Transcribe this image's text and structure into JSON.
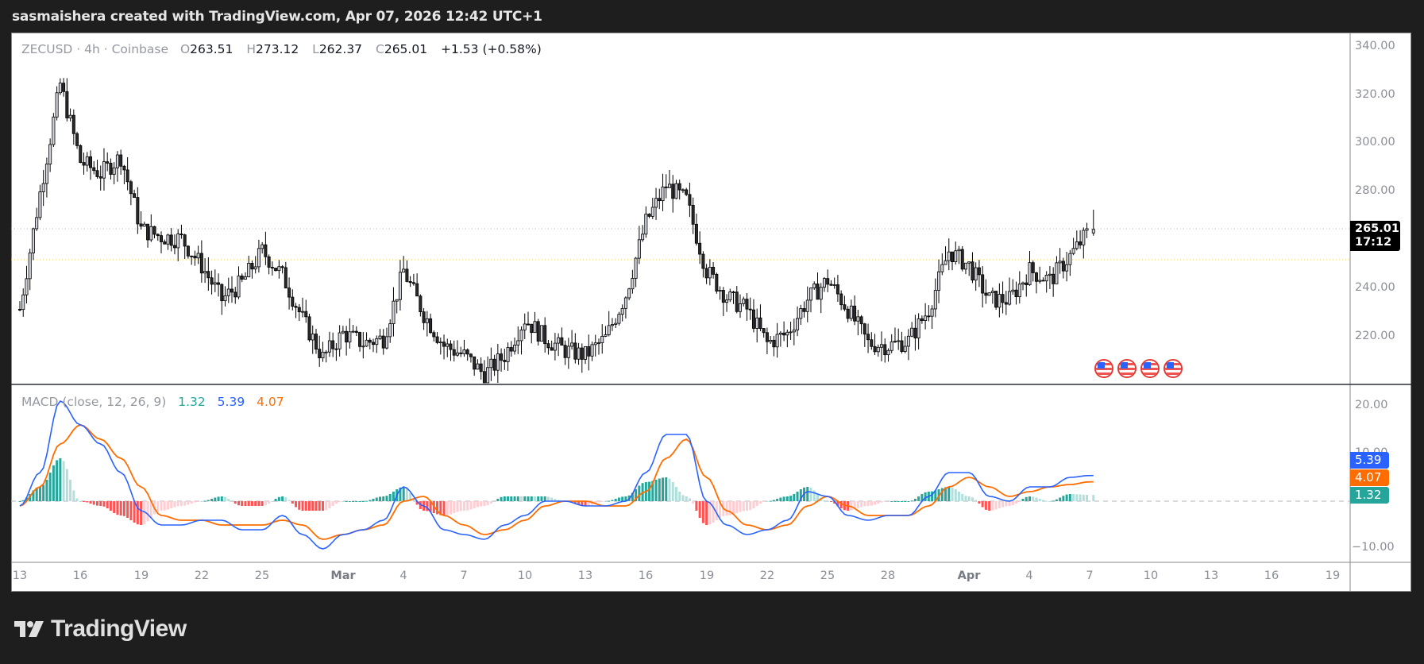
{
  "header": {
    "title": "sasmaishera created with TradingView.com, Apr 07, 2026 12:42 UTC+1"
  },
  "symbol_legend": {
    "symbol": "ZECUSD",
    "interval": "4h",
    "exchange": "Coinbase",
    "title": "ZECUSD · 4h · Coinbase",
    "open_label": "O",
    "open": "263.51",
    "high_label": "H",
    "high": "273.12",
    "low_label": "L",
    "low": "262.37",
    "close_label": "C",
    "close": "265.01",
    "change": "+1.53 (+0.58%)"
  },
  "price_axis": {
    "ticks": [
      "340.00",
      "320.00",
      "300.00",
      "280.00",
      "240.00",
      "220.00"
    ],
    "last_price": "265.01",
    "countdown": "17:12"
  },
  "macd_legend": {
    "title": "MACD (close, 12, 26, 9)",
    "histogram": "1.32",
    "macd": "5.39",
    "signal": "4.07"
  },
  "macd_axis": {
    "ticks": [
      "20.00",
      "10.00",
      "0.00",
      "−10.00"
    ],
    "macd_tag": "5.39",
    "signal_tag": "4.07",
    "hist_tag": "1.32"
  },
  "time_axis": {
    "labels": [
      "13",
      "16",
      "19",
      "22",
      "25",
      "Mar",
      "4",
      "7",
      "10",
      "13",
      "16",
      "19",
      "22",
      "25",
      "28",
      "Apr",
      "4",
      "7",
      "10",
      "13",
      "16",
      "19"
    ]
  },
  "events": {
    "icons": [
      "us-flag-event",
      "us-flag-event",
      "us-flag-event",
      "us-flag-event"
    ]
  },
  "footer": {
    "brand": "TradingView"
  },
  "colors": {
    "background_dark": "#1e1e1e",
    "panel": "#ffffff",
    "up_candle_fill": "#d1d4dc",
    "down_candle_fill": "#2a2a2a",
    "candle_outline": "#000000",
    "macd_line": "#2962ff",
    "signal_line": "#ff6d00",
    "hist_up_strong": "#26a69a",
    "hist_up_weak": "#b2dfdb",
    "hist_down_strong": "#ff5252",
    "hist_down_weak": "#ffcdd2",
    "last_price_line": "#b2b5be",
    "highlight_line": "#f7d23a"
  },
  "chart_data": {
    "type": "candlestick",
    "title": "ZECUSD · 4h · Coinbase",
    "xlabel": "",
    "ylabel": "",
    "x_range": [
      "Feb 13",
      "Apr 7"
    ],
    "ylim": [
      205,
      345
    ],
    "grid": false,
    "reference_lines": {
      "last_price": 265.01,
      "horizontal_marker": 252.5
    },
    "price_path_daily_close": {
      "dates": [
        "Feb 13",
        "Feb 14",
        "Feb 15",
        "Feb 16",
        "Feb 17",
        "Feb 18",
        "Feb 19",
        "Feb 20",
        "Feb 21",
        "Feb 22",
        "Feb 23",
        "Feb 24",
        "Feb 25",
        "Feb 26",
        "Feb 27",
        "Feb 28",
        "Mar 1",
        "Mar 2",
        "Mar 3",
        "Mar 4",
        "Mar 5",
        "Mar 6",
        "Mar 7",
        "Mar 8",
        "Mar 9",
        "Mar 10",
        "Mar 11",
        "Mar 12",
        "Mar 13",
        "Mar 14",
        "Mar 15",
        "Mar 16",
        "Mar 17",
        "Mar 18",
        "Mar 19",
        "Mar 20",
        "Mar 21",
        "Mar 22",
        "Mar 23",
        "Mar 24",
        "Mar 25",
        "Mar 26",
        "Mar 27",
        "Mar 28",
        "Mar 29",
        "Mar 30",
        "Mar 31",
        "Apr 1",
        "Apr 2",
        "Apr 3",
        "Apr 4",
        "Apr 5",
        "Apr 6",
        "Apr 7"
      ],
      "values": [
        232,
        280,
        325,
        293,
        288,
        295,
        265,
        262,
        261,
        250,
        236,
        243,
        256,
        246,
        228,
        212,
        222,
        218,
        220,
        248,
        230,
        217,
        213,
        205,
        213,
        228,
        220,
        215,
        213,
        220,
        238,
        268,
        283,
        277,
        248,
        237,
        232,
        218,
        222,
        236,
        244,
        232,
        218,
        217,
        219,
        232,
        256,
        250,
        236,
        236,
        248,
        244,
        254,
        265
      ]
    },
    "ohlc_last": {
      "open": 263.51,
      "high": 273.12,
      "low": 262.37,
      "close": 265.01,
      "change": 1.53,
      "change_pct": 0.58
    },
    "indicator": {
      "name": "MACD (close, 12, 26, 9)",
      "ylim": [
        -12,
        23
      ],
      "last": {
        "histogram": 1.32,
        "macd": 5.39,
        "signal": 4.07
      },
      "macd_daily": [
        -1,
        6,
        21,
        16,
        12,
        6,
        -2,
        -5,
        -5,
        -4,
        -4,
        -6,
        -6,
        -3,
        -7,
        -10,
        -7,
        -6,
        -4,
        3,
        -1,
        -6,
        -7,
        -8,
        -5,
        -3,
        0,
        0,
        -1,
        -1,
        0,
        6,
        14,
        14,
        0,
        -5,
        -7,
        -6,
        -4,
        2,
        1,
        -3,
        -4,
        -3,
        -3,
        1,
        6,
        6,
        1,
        0,
        3,
        3,
        5,
        5.39
      ],
      "signal_daily": [
        -1,
        3,
        12,
        16,
        13,
        9,
        3,
        -3,
        -4,
        -4,
        -5,
        -5,
        -5,
        -4,
        -5,
        -8,
        -7,
        -6,
        -5,
        0,
        1,
        -3,
        -5,
        -7,
        -6,
        -4,
        -1,
        0,
        0,
        -1,
        -1,
        2,
        9,
        13,
        5,
        -2,
        -5,
        -6,
        -5,
        -1,
        1,
        -1,
        -3,
        -3,
        -3,
        -1,
        3,
        5,
        3,
        1,
        2,
        3,
        3.5,
        4.07
      ]
    }
  }
}
